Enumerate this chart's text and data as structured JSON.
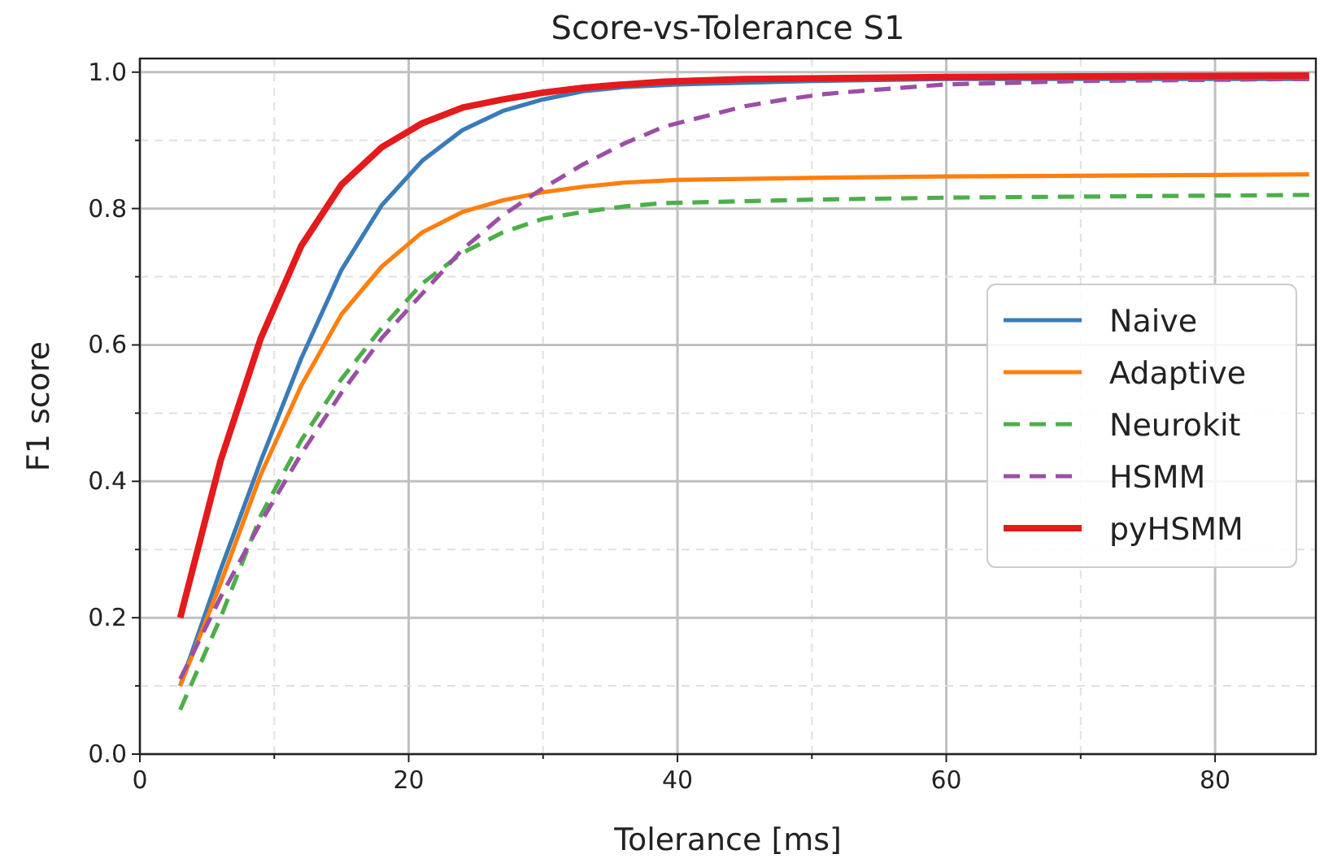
{
  "chart_data": {
    "type": "line",
    "title": "Score-vs-Tolerance S1",
    "xlabel": "Tolerance [ms]",
    "ylabel": "F1 score",
    "xlim": [
      0,
      87.5
    ],
    "ylim": [
      0,
      1.02
    ],
    "xticks": [
      0,
      {
        "value": 10,
        "label": null
      },
      20,
      {
        "value": 30,
        "label": null
      },
      40,
      {
        "value": 50,
        "label": null
      },
      60,
      {
        "value": 70,
        "label": null
      },
      80
    ],
    "yticks": [
      {
        "value": 0,
        "label": "0.0"
      },
      {
        "value": 0.1,
        "label": null
      },
      {
        "value": 0.2,
        "label": "0.2"
      },
      {
        "value": 0.3,
        "label": null
      },
      {
        "value": 0.4,
        "label": "0.4"
      },
      {
        "value": 0.5,
        "label": null
      },
      {
        "value": 0.6,
        "label": "0.6"
      },
      {
        "value": 0.7,
        "label": null
      },
      {
        "value": 0.8,
        "label": "0.8"
      },
      {
        "value": 0.9,
        "label": null
      },
      {
        "value": 1.0,
        "label": "1.0"
      }
    ],
    "grid": true,
    "legend": "center right",
    "series": [
      {
        "name": "Naive",
        "color": "#3a7bb8",
        "line_style": "solid",
        "x": [
          3,
          6,
          9,
          12,
          15,
          18,
          21,
          24,
          27,
          30,
          33,
          36,
          40,
          50,
          60,
          87
        ],
        "values": [
          0.1,
          0.27,
          0.43,
          0.58,
          0.71,
          0.805,
          0.87,
          0.915,
          0.943,
          0.96,
          0.972,
          0.978,
          0.982,
          0.987,
          0.99,
          0.99
        ]
      },
      {
        "name": "Adaptive",
        "color": "#ff7f0e",
        "line_style": "solid",
        "x": [
          3,
          6,
          9,
          12,
          15,
          18,
          21,
          24,
          27,
          30,
          33,
          36,
          40,
          50,
          60,
          87
        ],
        "values": [
          0.1,
          0.25,
          0.41,
          0.54,
          0.645,
          0.715,
          0.765,
          0.795,
          0.812,
          0.824,
          0.832,
          0.838,
          0.842,
          0.845,
          0.847,
          0.85
        ]
      },
      {
        "name": "Neurokit",
        "color": "#4caf4a",
        "line_style": "dashed",
        "x": [
          3,
          6,
          9,
          12,
          15,
          18,
          21,
          24,
          27,
          30,
          33,
          36,
          39,
          50,
          60,
          87
        ],
        "values": [
          0.065,
          0.2,
          0.35,
          0.46,
          0.55,
          0.625,
          0.69,
          0.735,
          0.765,
          0.785,
          0.795,
          0.803,
          0.808,
          0.813,
          0.816,
          0.82
        ]
      },
      {
        "name": "HSMM",
        "color": "#9b4fa5",
        "line_style": "dashed",
        "x": [
          3,
          6,
          9,
          12,
          15,
          18,
          21,
          24,
          27,
          30,
          33,
          36,
          39,
          42,
          45,
          48,
          51,
          54,
          60,
          70,
          87
        ],
        "values": [
          0.11,
          0.23,
          0.34,
          0.44,
          0.53,
          0.61,
          0.675,
          0.74,
          0.79,
          0.83,
          0.865,
          0.895,
          0.92,
          0.935,
          0.95,
          0.96,
          0.968,
          0.973,
          0.982,
          0.987,
          0.99
        ]
      },
      {
        "name": "pyHSMM",
        "color": "#e41a1c",
        "line_style": "solid",
        "x": [
          3,
          6,
          9,
          12,
          15,
          18,
          21,
          24,
          27,
          30,
          33,
          36,
          39,
          45,
          60,
          87
        ],
        "values": [
          0.2,
          0.43,
          0.61,
          0.745,
          0.835,
          0.89,
          0.925,
          0.948,
          0.96,
          0.97,
          0.977,
          0.982,
          0.986,
          0.99,
          0.993,
          0.995
        ]
      }
    ]
  }
}
